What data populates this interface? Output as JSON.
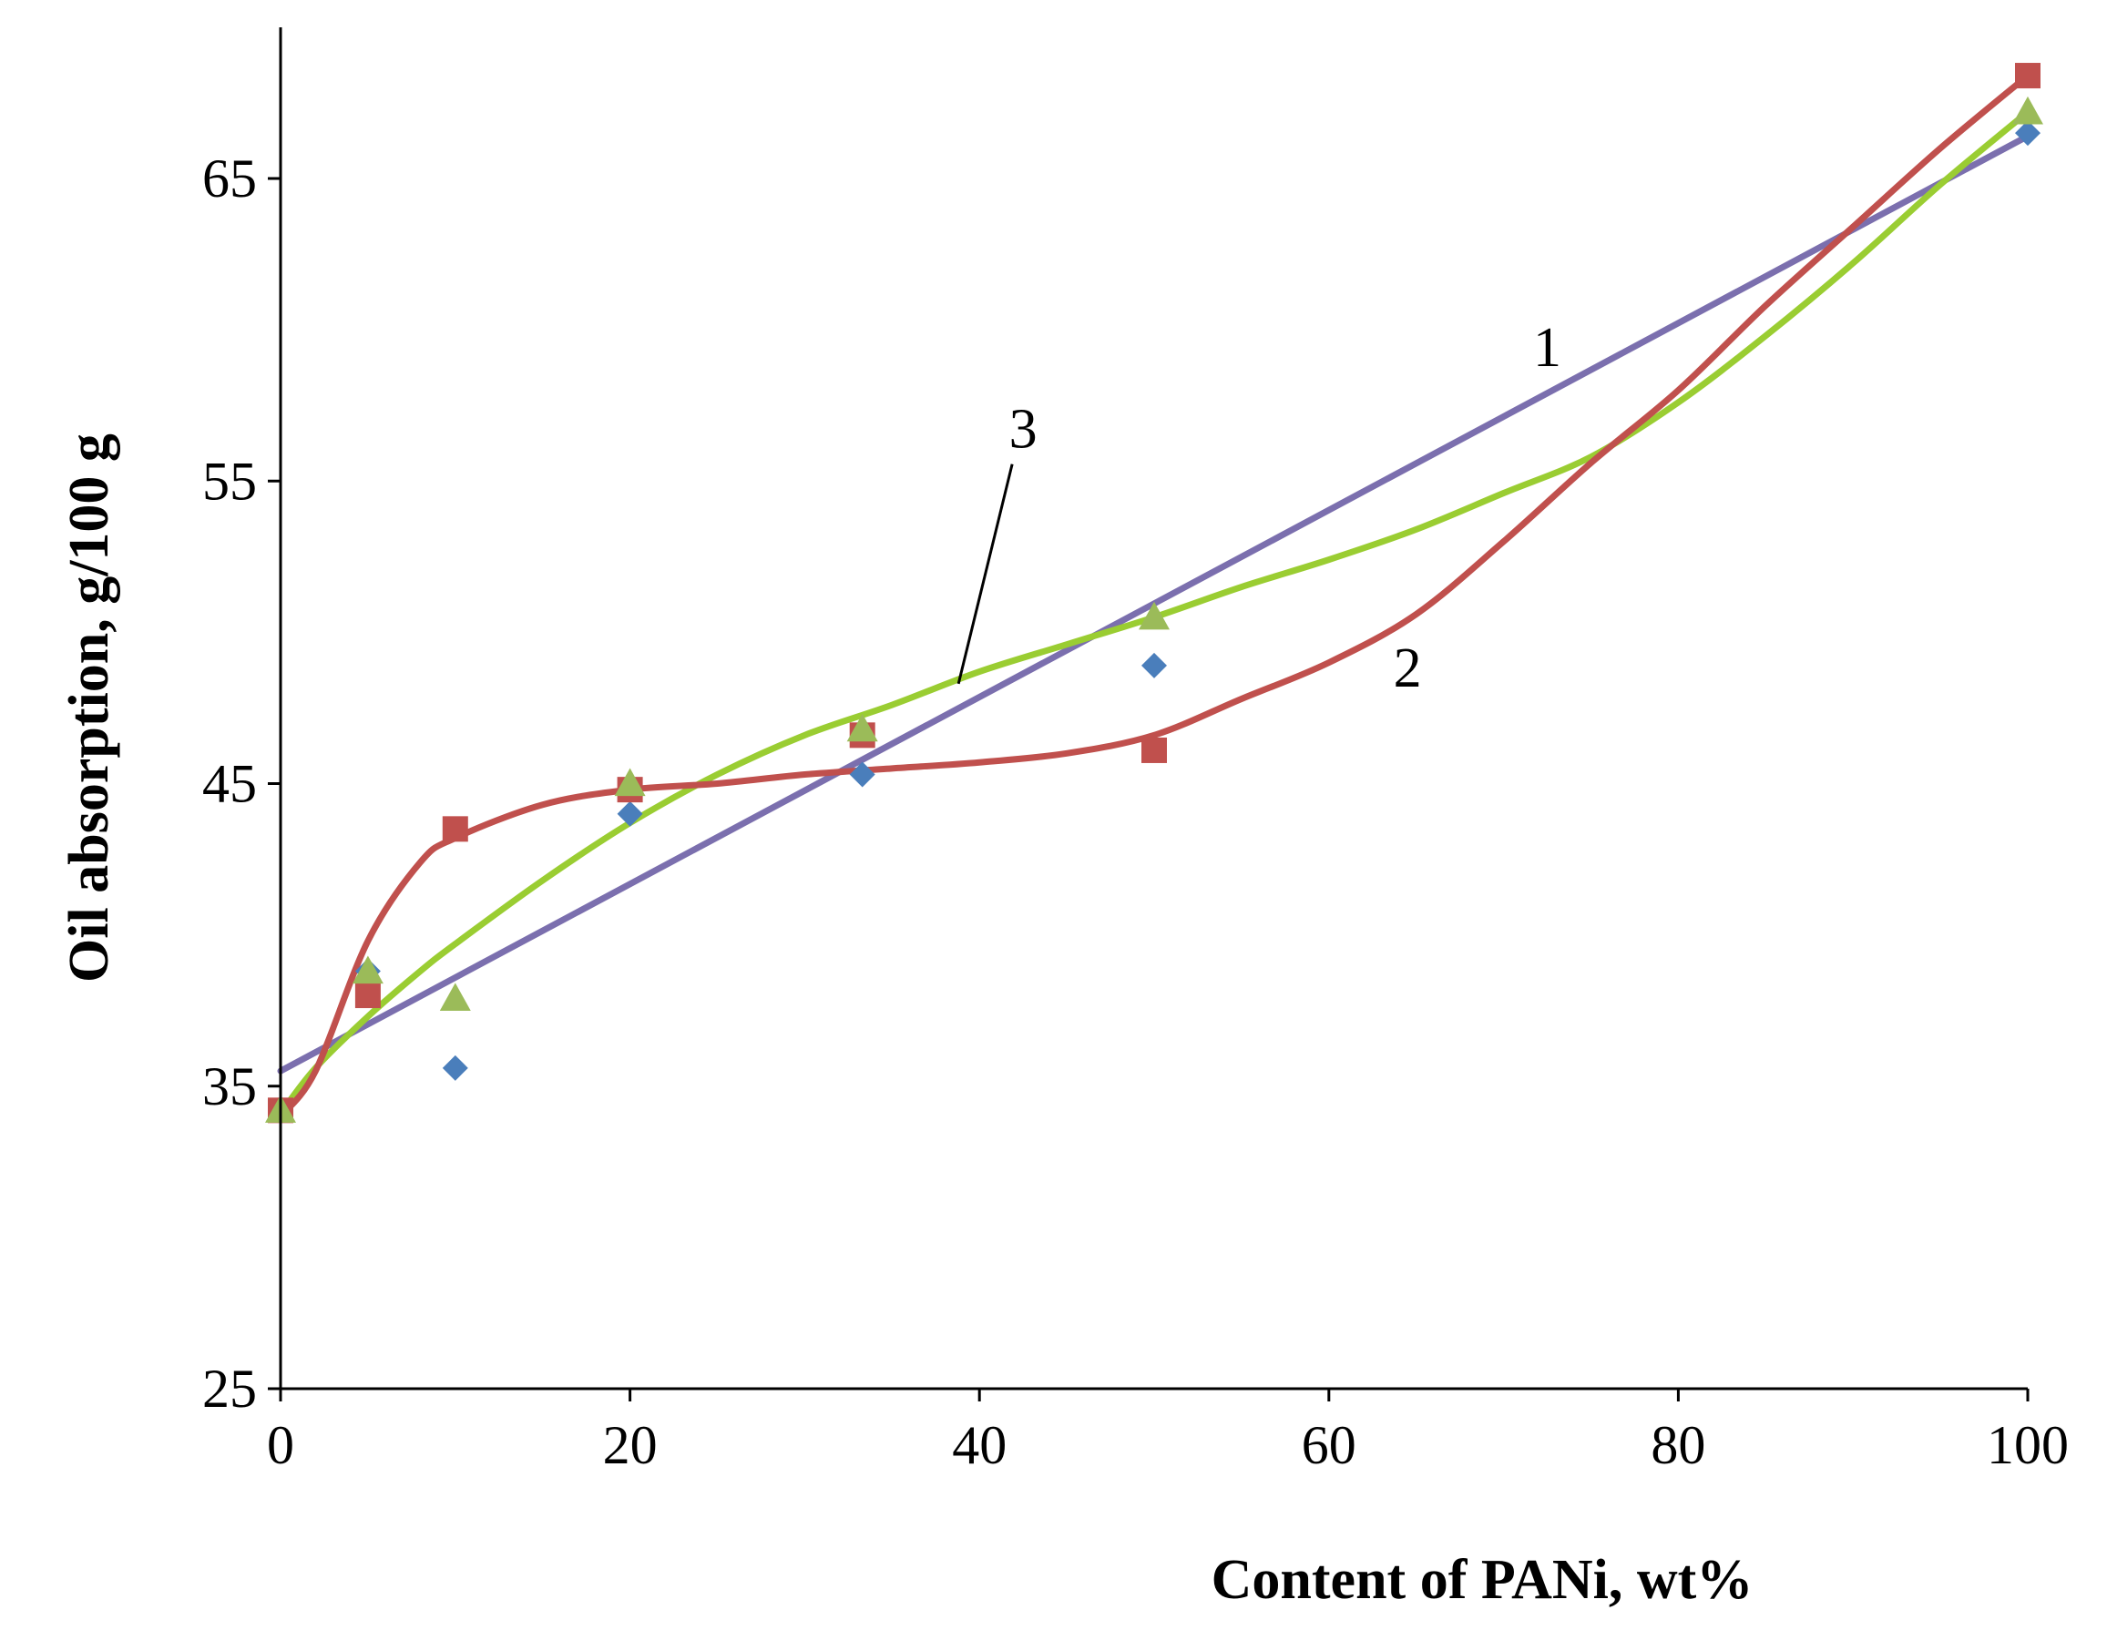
{
  "chart_data": {
    "type": "scatter",
    "title": "",
    "xlabel": "Content of PANi, wt%",
    "ylabel": "Oil absorption, g/100 g",
    "xlim": [
      0,
      100
    ],
    "ylim": [
      25,
      70
    ],
    "x_ticks": [
      0,
      20,
      40,
      60,
      80,
      100
    ],
    "x_tick_labels": [
      "0",
      "20",
      "40",
      "60",
      "80",
      "100"
    ],
    "y_ticks": [
      25,
      35,
      45,
      55,
      65
    ],
    "y_tick_labels": [
      "25",
      "35",
      "45",
      "55",
      "65"
    ],
    "grid": false,
    "legend": "none",
    "series": [
      {
        "name": "1",
        "marker": "diamond",
        "color": "#4a7ebb",
        "trend_color": "#7b6fae",
        "trend": "linear",
        "x": [
          0,
          5,
          10,
          20,
          33.3,
          50,
          100
        ],
        "y": [
          34.2,
          38.8,
          35.6,
          44.0,
          45.3,
          48.9,
          66.5
        ]
      },
      {
        "name": "2",
        "marker": "square",
        "color": "#c0504d",
        "trend_color": "#c0504d",
        "trend": "spline",
        "x": [
          0,
          5,
          10,
          20,
          33.3,
          50,
          100
        ],
        "y": [
          34.2,
          38.0,
          43.5,
          44.8,
          46.6,
          46.1,
          68.4
        ]
      },
      {
        "name": "3",
        "marker": "triangle",
        "color": "#9bbb59",
        "trend_color": "#9acd32",
        "trend": "polynomial",
        "x": [
          0,
          5,
          10,
          20,
          33.3,
          50,
          100
        ],
        "y": [
          34.2,
          38.8,
          37.9,
          45.0,
          46.8,
          50.5,
          67.2
        ]
      }
    ],
    "trend_curves": {
      "1": {
        "x": [
          0,
          100
        ],
        "y": [
          35.5,
          66.4
        ]
      },
      "2": {
        "x": [
          0,
          2,
          5,
          8,
          10,
          15,
          20,
          25,
          30,
          35,
          40,
          45,
          50,
          55,
          60,
          65,
          70,
          75,
          80,
          85,
          90,
          95,
          100
        ],
        "y": [
          34.0,
          35.5,
          39.8,
          42.4,
          43.2,
          44.3,
          44.8,
          45.0,
          45.3,
          45.5,
          45.7,
          46.0,
          46.6,
          47.8,
          49.0,
          50.6,
          53.0,
          55.6,
          58.0,
          60.8,
          63.4,
          66.0,
          68.4
        ]
      },
      "3": {
        "x": [
          0,
          2,
          5,
          8,
          10,
          15,
          20,
          25,
          30,
          35,
          40,
          45,
          50,
          55,
          60,
          65,
          70,
          75,
          80,
          85,
          90,
          95,
          100
        ],
        "y": [
          34.1,
          35.6,
          37.3,
          38.8,
          39.7,
          41.8,
          43.7,
          45.3,
          46.6,
          47.6,
          48.7,
          49.6,
          50.5,
          51.5,
          52.4,
          53.4,
          54.6,
          55.8,
          57.6,
          59.8,
          62.2,
          64.8,
          67.2
        ]
      }
    },
    "annotations": [
      {
        "text": "1",
        "x": 72.5,
        "y": 58.8
      },
      {
        "text": "2",
        "x": 64.5,
        "y": 48.2
      },
      {
        "text": "3",
        "x": 42.5,
        "y": 56.1,
        "arrow_to": [
          38.8,
          48.3
        ]
      }
    ]
  }
}
